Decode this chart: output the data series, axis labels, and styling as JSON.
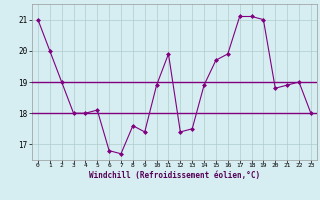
{
  "xlabel": "Windchill (Refroidissement éolien,°C)",
  "x": [
    0,
    1,
    2,
    3,
    4,
    5,
    6,
    7,
    8,
    9,
    10,
    11,
    12,
    13,
    14,
    15,
    16,
    17,
    18,
    19,
    20,
    21,
    22,
    23
  ],
  "y": [
    21,
    20,
    19,
    18,
    18,
    18.1,
    16.8,
    16.7,
    17.6,
    17.4,
    18.9,
    19.9,
    17.4,
    17.5,
    18.9,
    19.7,
    19.9,
    21.1,
    21.1,
    21.0,
    18.8,
    18.9,
    19.0,
    18.0
  ],
  "hline1_y": 19.0,
  "hline2_y": 18.0,
  "line_color": "#800080",
  "hline_color": "#800080",
  "bg_color": "#d6eef2",
  "grid_color": "#b0cccc",
  "ylim": [
    16.5,
    21.5
  ],
  "xlim": [
    -0.5,
    23.5
  ],
  "yticks": [
    17,
    18,
    19,
    20,
    21
  ],
  "xticks": [
    0,
    1,
    2,
    3,
    4,
    5,
    6,
    7,
    8,
    9,
    10,
    11,
    12,
    13,
    14,
    15,
    16,
    17,
    18,
    19,
    20,
    21,
    22,
    23
  ],
  "xtick_labels": [
    "0",
    "1",
    "2",
    "3",
    "4",
    "5",
    "6",
    "7",
    "8",
    "9",
    "10",
    "11",
    "12",
    "13",
    "14",
    "15",
    "16",
    "17",
    "18",
    "19",
    "20",
    "21",
    "22",
    "23"
  ]
}
